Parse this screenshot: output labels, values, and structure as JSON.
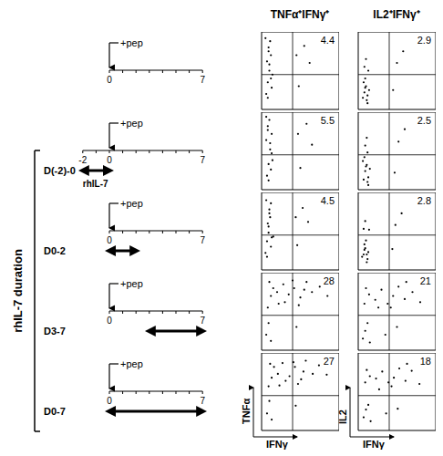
{
  "column_titles": [
    "TNFα⁺IFNγ⁺",
    "IL2⁺IFNγ⁺"
  ],
  "group_label": "rhIL-7 duration",
  "timeline": {
    "treatment_label": "+pep",
    "rows": [
      {
        "ticks": [
          0,
          7
        ]
      },
      {
        "ticks": [
          -2,
          0,
          7
        ],
        "rhil7": [
          -2,
          0
        ],
        "label": "D(-2)-0",
        "arrow_label": "rhIL-7"
      },
      {
        "ticks": [
          0,
          7
        ],
        "rhil7": [
          0,
          2
        ],
        "label": "D0-2"
      },
      {
        "ticks": [
          0,
          7
        ],
        "rhil7": [
          3,
          7
        ],
        "label": "D3-7"
      },
      {
        "ticks": [
          0,
          7
        ],
        "rhil7": [
          0,
          7
        ],
        "label": "D0-7"
      }
    ]
  },
  "chart_data": [
    {
      "type": "scatter",
      "xlim": [
        0,
        100
      ],
      "ylim": [
        0,
        100
      ],
      "tick_labels": false,
      "color": "#000000",
      "gate": {
        "x": 40,
        "y": 45
      },
      "quadrant_percent": 4.4,
      "points": [
        [
          6,
          20
        ],
        [
          8,
          35
        ],
        [
          10,
          50
        ],
        [
          7,
          62
        ],
        [
          12,
          70
        ],
        [
          9,
          80
        ],
        [
          11,
          88
        ],
        [
          5,
          92
        ],
        [
          14,
          45
        ],
        [
          8,
          15
        ],
        [
          13,
          28
        ],
        [
          10,
          58
        ],
        [
          45,
          70
        ],
        [
          55,
          82
        ],
        [
          62,
          60
        ],
        [
          48,
          30
        ],
        [
          9,
          75
        ],
        [
          12,
          40
        ]
      ]
    },
    {
      "type": "scatter",
      "xlim": [
        0,
        100
      ],
      "ylim": [
        0,
        100
      ],
      "tick_labels": false,
      "color": "#000000",
      "gate": {
        "x": 40,
        "y": 45
      },
      "quadrant_percent": 2.9,
      "points": [
        [
          6,
          15
        ],
        [
          8,
          22
        ],
        [
          10,
          30
        ],
        [
          12,
          18
        ],
        [
          7,
          35
        ],
        [
          14,
          25
        ],
        [
          9,
          40
        ],
        [
          11,
          12
        ],
        [
          8,
          55
        ],
        [
          10,
          65
        ],
        [
          13,
          50
        ],
        [
          50,
          60
        ],
        [
          58,
          75
        ],
        [
          45,
          25
        ],
        [
          9,
          28
        ],
        [
          12,
          8
        ]
      ]
    },
    {
      "type": "scatter",
      "xlim": [
        0,
        100
      ],
      "ylim": [
        0,
        100
      ],
      "tick_labels": false,
      "color": "#000000",
      "gate": {
        "x": 40,
        "y": 45
      },
      "quadrant_percent": 5.5,
      "points": [
        [
          7,
          18
        ],
        [
          9,
          33
        ],
        [
          11,
          52
        ],
        [
          6,
          64
        ],
        [
          13,
          72
        ],
        [
          8,
          82
        ],
        [
          10,
          90
        ],
        [
          6,
          94
        ],
        [
          13,
          47
        ],
        [
          9,
          12
        ],
        [
          12,
          26
        ],
        [
          11,
          60
        ],
        [
          47,
          72
        ],
        [
          58,
          85
        ],
        [
          65,
          58
        ],
        [
          50,
          28
        ],
        [
          8,
          77
        ],
        [
          14,
          38
        ]
      ]
    },
    {
      "type": "scatter",
      "xlim": [
        0,
        100
      ],
      "ylim": [
        0,
        100
      ],
      "tick_labels": false,
      "color": "#000000",
      "gate": {
        "x": 40,
        "y": 45
      },
      "quadrant_percent": 2.5,
      "points": [
        [
          7,
          13
        ],
        [
          9,
          24
        ],
        [
          11,
          32
        ],
        [
          13,
          16
        ],
        [
          6,
          37
        ],
        [
          15,
          27
        ],
        [
          8,
          42
        ],
        [
          12,
          10
        ],
        [
          9,
          57
        ],
        [
          11,
          67
        ],
        [
          12,
          48
        ],
        [
          52,
          62
        ],
        [
          60,
          78
        ],
        [
          47,
          22
        ],
        [
          10,
          30
        ],
        [
          13,
          6
        ]
      ]
    },
    {
      "type": "scatter",
      "xlim": [
        0,
        100
      ],
      "ylim": [
        0,
        100
      ],
      "tick_labels": false,
      "color": "#000000",
      "gate": {
        "x": 40,
        "y": 45
      },
      "quadrant_percent": 4.5,
      "points": [
        [
          5,
          22
        ],
        [
          7,
          37
        ],
        [
          9,
          48
        ],
        [
          8,
          60
        ],
        [
          11,
          68
        ],
        [
          10,
          78
        ],
        [
          12,
          86
        ],
        [
          6,
          90
        ],
        [
          15,
          43
        ],
        [
          7,
          17
        ],
        [
          12,
          30
        ],
        [
          9,
          56
        ],
        [
          44,
          68
        ],
        [
          53,
          80
        ],
        [
          60,
          62
        ],
        [
          46,
          32
        ],
        [
          10,
          73
        ],
        [
          13,
          42
        ]
      ]
    },
    {
      "type": "scatter",
      "xlim": [
        0,
        100
      ],
      "ylim": [
        0,
        100
      ],
      "tick_labels": false,
      "color": "#000000",
      "gate": {
        "x": 40,
        "y": 45
      },
      "quadrant_percent": 2.8,
      "points": [
        [
          5,
          17
        ],
        [
          7,
          20
        ],
        [
          9,
          28
        ],
        [
          11,
          20
        ],
        [
          8,
          33
        ],
        [
          13,
          23
        ],
        [
          10,
          38
        ],
        [
          12,
          14
        ],
        [
          7,
          53
        ],
        [
          9,
          63
        ],
        [
          14,
          52
        ],
        [
          48,
          58
        ],
        [
          56,
          73
        ],
        [
          44,
          27
        ],
        [
          8,
          26
        ],
        [
          11,
          10
        ]
      ]
    },
    {
      "type": "scatter",
      "xlim": [
        0,
        100
      ],
      "ylim": [
        0,
        100
      ],
      "tick_labels": false,
      "color": "#000000",
      "gate": {
        "x": 40,
        "y": 45
      },
      "quadrant_percent": 28,
      "points": [
        [
          6,
          20
        ],
        [
          9,
          35
        ],
        [
          8,
          55
        ],
        [
          12,
          70
        ],
        [
          15,
          80
        ],
        [
          20,
          75
        ],
        [
          28,
          85
        ],
        [
          35,
          72
        ],
        [
          42,
          80
        ],
        [
          50,
          68
        ],
        [
          58,
          88
        ],
        [
          65,
          75
        ],
        [
          75,
          82
        ],
        [
          48,
          58
        ],
        [
          30,
          62
        ],
        [
          10,
          88
        ],
        [
          22,
          60
        ],
        [
          85,
          70
        ],
        [
          55,
          78
        ],
        [
          40,
          90
        ],
        [
          12,
          12
        ],
        [
          45,
          30
        ]
      ]
    },
    {
      "type": "scatter",
      "xlim": [
        0,
        100
      ],
      "ylim": [
        0,
        100
      ],
      "tick_labels": false,
      "color": "#000000",
      "gate": {
        "x": 40,
        "y": 45
      },
      "quadrant_percent": 21,
      "points": [
        [
          6,
          15
        ],
        [
          9,
          25
        ],
        [
          12,
          35
        ],
        [
          8,
          60
        ],
        [
          14,
          72
        ],
        [
          22,
          65
        ],
        [
          30,
          78
        ],
        [
          38,
          60
        ],
        [
          45,
          70
        ],
        [
          52,
          82
        ],
        [
          60,
          66
        ],
        [
          70,
          75
        ],
        [
          80,
          62
        ],
        [
          42,
          55
        ],
        [
          26,
          55
        ],
        [
          10,
          80
        ],
        [
          50,
          30
        ],
        [
          35,
          20
        ],
        [
          15,
          10
        ],
        [
          62,
          88
        ]
      ]
    },
    {
      "type": "scatter",
      "xlim": [
        0,
        100
      ],
      "ylim": [
        0,
        100
      ],
      "tick_labels": false,
      "color": "#000000",
      "gate": {
        "x": 40,
        "y": 45
      },
      "quadrant_percent": 27,
      "x_label": "IFNγ",
      "y_label": "TNFα",
      "points": [
        [
          7,
          22
        ],
        [
          10,
          38
        ],
        [
          9,
          57
        ],
        [
          13,
          68
        ],
        [
          16,
          82
        ],
        [
          21,
          73
        ],
        [
          27,
          87
        ],
        [
          36,
          70
        ],
        [
          43,
          82
        ],
        [
          51,
          66
        ],
        [
          57,
          90
        ],
        [
          66,
          73
        ],
        [
          74,
          84
        ],
        [
          47,
          60
        ],
        [
          31,
          64
        ],
        [
          11,
          86
        ],
        [
          23,
          58
        ],
        [
          84,
          72
        ],
        [
          54,
          76
        ],
        [
          41,
          88
        ],
        [
          13,
          14
        ],
        [
          44,
          32
        ]
      ]
    },
    {
      "type": "scatter",
      "xlim": [
        0,
        100
      ],
      "ylim": [
        0,
        100
      ],
      "tick_labels": false,
      "color": "#000000",
      "gate": {
        "x": 40,
        "y": 45
      },
      "quadrant_percent": 18,
      "x_label": "IFNγ",
      "y_label": "IL2",
      "points": [
        [
          7,
          17
        ],
        [
          10,
          27
        ],
        [
          13,
          33
        ],
        [
          9,
          62
        ],
        [
          15,
          70
        ],
        [
          23,
          67
        ],
        [
          31,
          76
        ],
        [
          39,
          62
        ],
        [
          46,
          68
        ],
        [
          53,
          80
        ],
        [
          61,
          64
        ],
        [
          69,
          77
        ],
        [
          79,
          60
        ],
        [
          43,
          57
        ],
        [
          27,
          53
        ],
        [
          11,
          78
        ],
        [
          51,
          28
        ],
        [
          36,
          22
        ],
        [
          16,
          12
        ],
        [
          63,
          86
        ]
      ]
    }
  ]
}
